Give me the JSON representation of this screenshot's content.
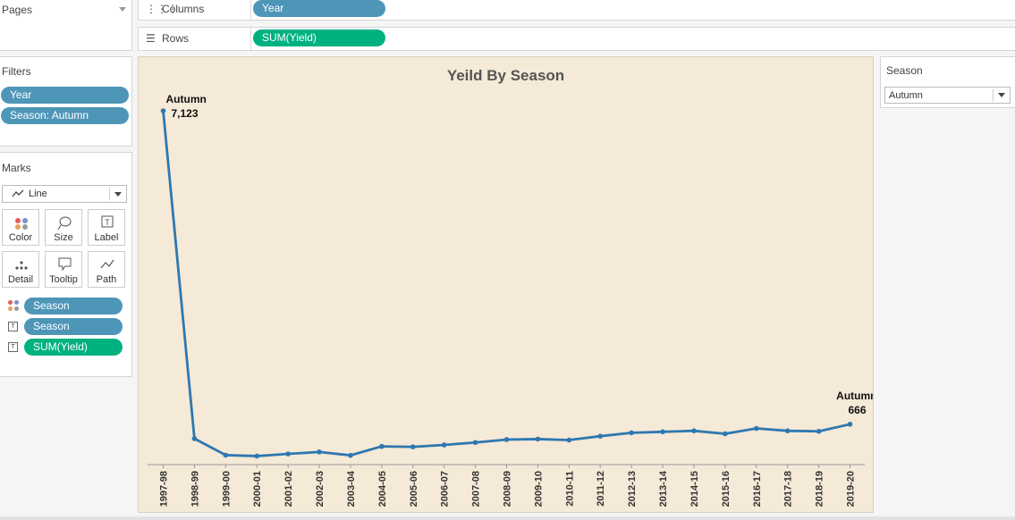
{
  "pages": {
    "title": "Pages"
  },
  "shelves": {
    "columns": {
      "label": "Columns",
      "pill": "Year"
    },
    "rows": {
      "label": "Rows",
      "pill": "SUM(Yield)"
    }
  },
  "filters": {
    "title": "Filters",
    "items": [
      "Year",
      "Season: Autumn"
    ]
  },
  "marks": {
    "title": "Marks",
    "type": "Line",
    "cards": [
      {
        "label": "Color",
        "icon": "color-dots-icon"
      },
      {
        "label": "Size",
        "icon": "size-lasso-icon"
      },
      {
        "label": "Label",
        "icon": "label-t-icon"
      },
      {
        "label": "Detail",
        "icon": "detail-dots-icon"
      },
      {
        "label": "Tooltip",
        "icon": "tooltip-bubble-icon"
      },
      {
        "label": "Path",
        "icon": "path-line-icon"
      }
    ],
    "fields": [
      {
        "label": "Season",
        "kind": "color",
        "color": "#4e96b8"
      },
      {
        "label": "Season",
        "kind": "label",
        "color": "#4e96b8"
      },
      {
        "label": "SUM(Yield)",
        "kind": "label",
        "color": "#00b180"
      }
    ]
  },
  "season_filter": {
    "title": "Season",
    "selected": "Autumn"
  },
  "colors": {
    "line": "#2e78b0",
    "pill_dimension": "#4e96b8",
    "pill_measure": "#00b180",
    "chart_bg": "#f5e9d7"
  },
  "chart_data": {
    "type": "line",
    "title": "Yeild By Season",
    "xlabel": "",
    "ylabel": "",
    "grid": false,
    "y_axis_visible": false,
    "x": [
      "1997-98",
      "1998-99",
      "1999-00",
      "2000-01",
      "2001-02",
      "2002-03",
      "2003-04",
      "2004-05",
      "2005-06",
      "2006-07",
      "2007-08",
      "2008-09",
      "2009-10",
      "2010-11",
      "2011-12",
      "2012-13",
      "2013-14",
      "2014-15",
      "2015-16",
      "2016-17",
      "2017-18",
      "2018-19",
      "2019-20"
    ],
    "series": [
      {
        "name": "Autumn",
        "values": [
          7123,
          370,
          30,
          10,
          55,
          95,
          25,
          210,
          200,
          240,
          290,
          350,
          360,
          340,
          420,
          490,
          510,
          530,
          470,
          580,
          530,
          520,
          666
        ]
      }
    ],
    "annotations": [
      {
        "index": 0,
        "category": "Autumn",
        "value": "7,123"
      },
      {
        "index": 22,
        "category": "Autumn",
        "value": "666"
      }
    ],
    "ylim": [
      0,
      7123
    ]
  }
}
